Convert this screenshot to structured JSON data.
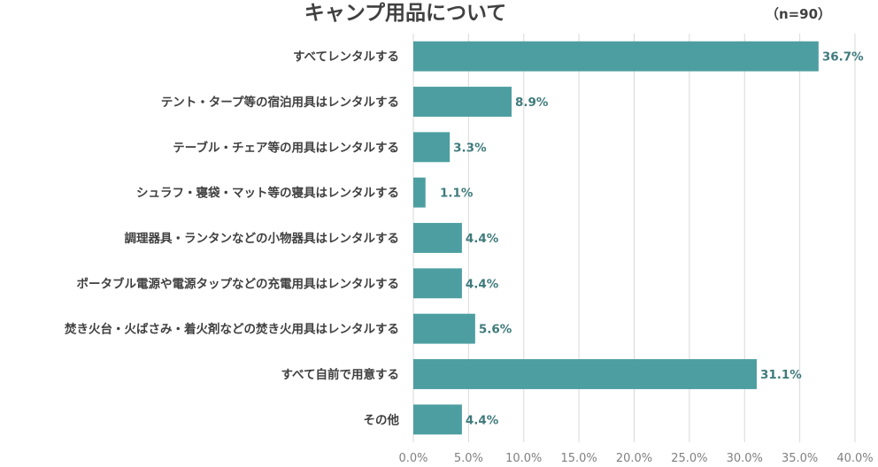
{
  "chart_data": {
    "type": "bar",
    "orientation": "horizontal",
    "title": "キャンプ用品について",
    "note": "（n=90）",
    "categories": [
      "すべてレンタルする",
      "テント・タープ等の宿泊用具はレンタルする",
      "テーブル・チェア等の用具はレンタルする",
      "シュラフ・寝袋・マット等の寝具はレンタルする",
      "調理器具・ランタンなどの小物器具はレンタルする",
      "ポータブル電源や電源タップなどの充電用具はレンタルする",
      "焚き火台・火ばさみ・着火剤などの焚き火用具はレンタルする",
      "すべて自前で用意する",
      "その他"
    ],
    "values": [
      36.7,
      8.9,
      3.3,
      1.1,
      4.4,
      4.4,
      5.6,
      31.1,
      4.4
    ],
    "value_labels": [
      "36.7%",
      "8.9%",
      "3.3%",
      "1.1%",
      "4.4%",
      "4.4%",
      "5.6%",
      "31.1%",
      "4.4%"
    ],
    "xlim": [
      0,
      40
    ],
    "x_ticks": [
      0,
      5,
      10,
      15,
      20,
      25,
      30,
      35,
      40
    ],
    "x_tick_labels": [
      "0.0%",
      "5.0%",
      "10.0%",
      "15.0%",
      "20.0%",
      "25.0%",
      "30.0%",
      "35.0%",
      "40.0%"
    ],
    "grid": true,
    "bar_color": "#4d9ea0",
    "label_color": "#3f7a7c"
  }
}
